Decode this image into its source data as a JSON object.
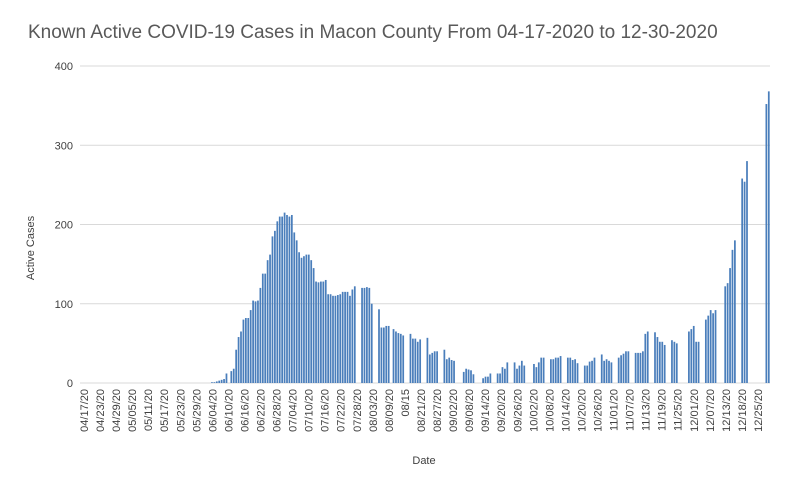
{
  "chart_data": {
    "type": "bar",
    "title": "Known Active COVID-19 Cases in Macon County From 04-17-2020 to 12-30-2020",
    "xlabel": "Date",
    "ylabel": "Active Cases",
    "ylim": [
      0,
      400
    ],
    "yticks": [
      0,
      100,
      200,
      300,
      400
    ],
    "grid": true,
    "bar_color": "#4a7ebb",
    "tick_dates": [
      "04/17/20",
      "04/23/20",
      "04/29/20",
      "05/05/20",
      "05/11/20",
      "05/17/20",
      "05/23/20",
      "05/29/20",
      "06/04/20",
      "06/10/20",
      "06/16/20",
      "06/22/20",
      "06/28/20",
      "07/04/20",
      "07/10/20",
      "07/16/20",
      "07/22/20",
      "07/28/20",
      "08/03/20",
      "08/09/20",
      "08/15",
      "08/21/20",
      "08/27/20",
      "09/02/20",
      "09/08/20",
      "09/14/20",
      "09/20/20",
      "09/26/20",
      "10/02/20",
      "10/08/20",
      "10/14/20",
      "10/20/20",
      "10/26/20",
      "11/01/20",
      "11/07/20",
      "11/13/20",
      "11/19/20",
      "11/25/20",
      "12/01/20",
      "12/07/20",
      "12/13/20",
      "12/18/20",
      "12/25/20"
    ],
    "values": [
      0,
      0,
      0,
      0,
      0,
      0,
      0,
      0,
      0,
      0,
      0,
      0,
      0,
      0,
      0,
      0,
      0,
      0,
      0,
      0,
      0,
      0,
      0,
      0,
      0,
      0,
      0,
      0,
      0,
      0,
      0,
      0,
      0,
      0,
      0,
      0,
      0,
      0,
      0,
      0,
      0,
      0,
      0,
      0,
      0,
      0,
      0,
      0,
      0,
      0,
      0,
      0,
      0,
      0,
      1,
      1,
      2,
      3,
      4,
      5,
      12,
      0,
      15,
      18,
      42,
      58,
      65,
      80,
      82,
      82,
      92,
      104,
      103,
      104,
      120,
      138,
      138,
      155,
      162,
      185,
      192,
      204,
      210,
      210,
      215,
      212,
      210,
      212,
      190,
      180,
      165,
      158,
      160,
      162,
      162,
      155,
      145,
      128,
      127,
      128,
      128,
      130,
      112,
      112,
      110,
      110,
      111,
      112,
      115,
      115,
      115,
      110,
      118,
      122,
      0,
      0,
      120,
      120,
      121,
      120,
      100,
      0,
      0,
      93,
      70,
      70,
      72,
      72,
      0,
      68,
      65,
      63,
      62,
      60,
      0,
      0,
      62,
      56,
      56,
      52,
      55,
      0,
      0,
      57,
      36,
      38,
      40,
      40,
      0,
      0,
      42,
      30,
      32,
      29,
      28,
      0,
      0,
      0,
      14,
      18,
      17,
      16,
      11,
      0,
      0,
      0,
      6,
      8,
      8,
      12,
      0,
      0,
      12,
      12,
      20,
      18,
      26,
      0,
      0,
      26,
      18,
      22,
      28,
      22,
      0,
      0,
      0,
      24,
      20,
      26,
      32,
      32,
      0,
      0,
      30,
      30,
      32,
      32,
      34,
      0,
      0,
      32,
      32,
      29,
      30,
      25,
      0,
      0,
      22,
      22,
      27,
      28,
      32,
      0,
      0,
      36,
      28,
      30,
      28,
      26,
      0,
      0,
      32,
      35,
      37,
      40,
      40,
      0,
      0,
      38,
      38,
      38,
      40,
      62,
      65,
      0,
      0,
      64,
      58,
      52,
      52,
      48,
      0,
      0,
      54,
      52,
      50,
      0,
      0,
      0,
      0,
      65,
      68,
      72,
      52,
      52,
      0,
      0,
      80,
      85,
      92,
      88,
      92,
      0,
      0,
      0,
      122,
      126,
      145,
      168,
      180,
      0,
      0,
      258,
      254,
      280,
      0,
      0,
      0,
      0,
      0,
      0,
      0,
      352,
      368
    ]
  }
}
